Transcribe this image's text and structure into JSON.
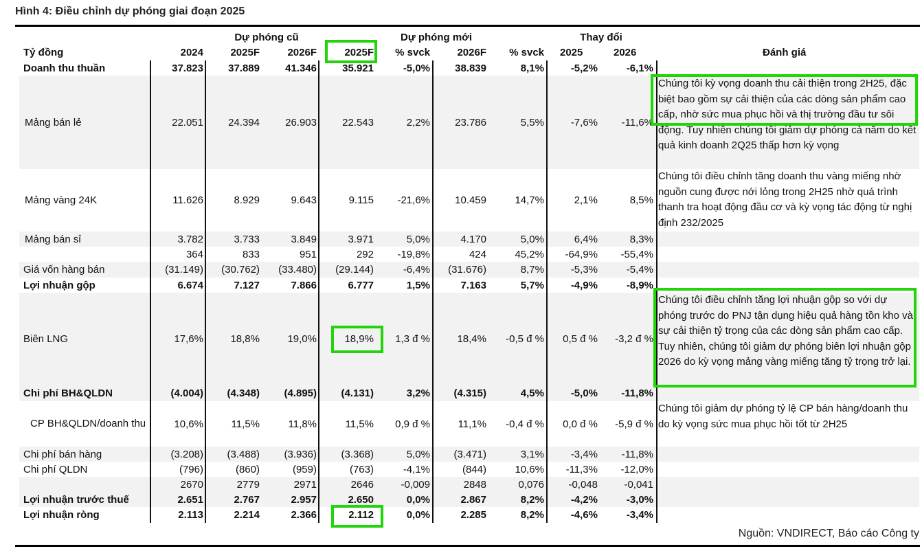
{
  "title": "Hình 4: Điều chỉnh dự phóng giai đoạn 2025",
  "groups": {
    "old": "Dự phóng cũ",
    "new": "Dự phóng mới",
    "change": "Thay đổi"
  },
  "headers": {
    "unit": "Tỷ đồng",
    "c2024": "2024",
    "old2025": "2025F",
    "old2026": "2026F",
    "new2025": "2025F",
    "svck1": "% svck",
    "new2026": "2026F",
    "svck2": "% svck",
    "chg2025": "2025",
    "chg2026": "2026",
    "assessment": "Đánh giá"
  },
  "rows": [
    {
      "label": "Doanh thu thuần",
      "bold": true,
      "values": [
        "37.823",
        "37.889",
        "41.346",
        "35.921",
        "-5,0%",
        "38.839",
        "8,1%",
        "-5,2%",
        "-6,1%"
      ]
    },
    {
      "label": "Mảng bán lẻ",
      "bold": false,
      "values": [
        "22.051",
        "24.394",
        "26.903",
        "22.543",
        "2,2%",
        "23.786",
        "5,5%",
        "-7,6%",
        "-11,6%"
      ]
    },
    {
      "label": "Mảng vàng 24K",
      "bold": false,
      "values": [
        "11.626",
        "8.929",
        "9.643",
        "9.115",
        "-21,6%",
        "10.459",
        "14,7%",
        "2,1%",
        "8,5%"
      ]
    },
    {
      "label": "Mảng bán sỉ",
      "bold": false,
      "values": [
        "3.782",
        "3.733",
        "3.849",
        "3.971",
        "5,0%",
        "4.170",
        "5,0%",
        "6,4%",
        "8,3%"
      ]
    },
    {
      "label": "",
      "bold": false,
      "values": [
        "364",
        "833",
        "951",
        "292",
        "-19,8%",
        "424",
        "45,2%",
        "-64,9%",
        "-55,4%"
      ]
    },
    {
      "label": "Giá vốn hàng bán",
      "bold": false,
      "values": [
        "(31.149)",
        "(30.762)",
        "(33.480)",
        "(29.144)",
        "-6,4%",
        "(31.676)",
        "8,7%",
        "-5,3%",
        "-5,4%"
      ]
    },
    {
      "label": "Lợi nhuận gộp",
      "bold": true,
      "values": [
        "6.674",
        "7.127",
        "7.866",
        "6.777",
        "1,5%",
        "7.163",
        "5,7%",
        "-4,9%",
        "-8,9%"
      ]
    },
    {
      "label": "Biên LNG",
      "bold": false,
      "values": [
        "17,6%",
        "18,8%",
        "19,0%",
        "18,9%",
        "1,3 đ %",
        "18,4%",
        "-0,5 đ %",
        "0,5 đ %",
        "-3,2 đ %"
      ]
    },
    {
      "label": "Chi phí BH&QLDN",
      "bold": true,
      "values": [
        "(4.004)",
        "(4.348)",
        "(4.895)",
        "(4.131)",
        "3,2%",
        "(4.315)",
        "4,5%",
        "-5,0%",
        "-11,8%"
      ]
    },
    {
      "label": "CP BH&QLDN/doanh thu",
      "bold": false,
      "values": [
        "10,6%",
        "11,5%",
        "11,8%",
        "11,5%",
        "0,9 đ %",
        "11,1%",
        "-0,4 đ %",
        "0,0 đ %",
        "-5,9 đ %"
      ]
    },
    {
      "label": "Chi phí bán hàng",
      "bold": false,
      "values": [
        "(3.208)",
        "(3.488)",
        "(3.936)",
        "(3.368)",
        "5,0%",
        "(3.471)",
        "3,1%",
        "-3,4%",
        "-11,8%"
      ]
    },
    {
      "label": "Chi phí QLDN",
      "bold": false,
      "values": [
        "(796)",
        "(860)",
        "(959)",
        "(763)",
        "-4,1%",
        "(844)",
        "10,6%",
        "-11,3%",
        "-12,0%"
      ]
    },
    {
      "label": "",
      "bold": false,
      "values": [
        "2670",
        "2779",
        "2971",
        "2646",
        "-0,009",
        "2848",
        "0,076",
        "-0,048",
        "-0,041"
      ]
    },
    {
      "label": "Lợi nhuận trước thuế",
      "bold": true,
      "values": [
        "2.651",
        "2.767",
        "2.957",
        "2.650",
        "0,0%",
        "2.867",
        "8,2%",
        "-4,2%",
        "-3,0%"
      ]
    },
    {
      "label": "Lợi nhuận ròng",
      "bold": true,
      "values": [
        "2.113",
        "2.214",
        "2.366",
        "2.112",
        "0,0%",
        "2.285",
        "8,2%",
        "-4,6%",
        "-3,4%"
      ]
    }
  ],
  "notes": {
    "retail": "Chúng tôi kỳ vọng doanh thu cải thiện trong 2H25, đặc biệt bao gồm sự cải thiện của các dòng sản phẩm cao cấp, nhờ sức mua phục hồi và thị trường đầu tư sôi động. Tuy nhiên chúng tôi giảm dự phóng cả năm do kết quả kinh doanh 2Q25 thấp hơn kỳ vọng",
    "gold": "Chúng tôi điều chỉnh tăng doanh thu vàng miếng nhờ nguồn cung được nới lỏng trong 2H25 nhờ quá trình thanh tra hoạt động đầu cơ và kỳ vọng tác động từ nghị định 232/2025",
    "margin": "Chúng tôi điều chỉnh tăng lợi nhuận gộp so với dự phóng trước do PNJ tận dụng hiệu quả hàng tồn kho và sự cải thiện tỷ trọng của các dòng sản phẩm cao cấp. Tuy nhiên, chúng tôi giảm dự phóng biên lợi nhuận gộp 2026 do kỳ vọng mảng vàng miếng tăng tỷ trọng trở lại.",
    "sga": "Chúng tôi giảm dự phóng tỷ lệ CP bán hàng/doanh thu do kỳ vọng sức mua phục hồi tốt từ 2H25"
  },
  "source": "Nguồn: VNDIRECT, Báo cáo Công ty",
  "highlight_color": "#22d40a"
}
